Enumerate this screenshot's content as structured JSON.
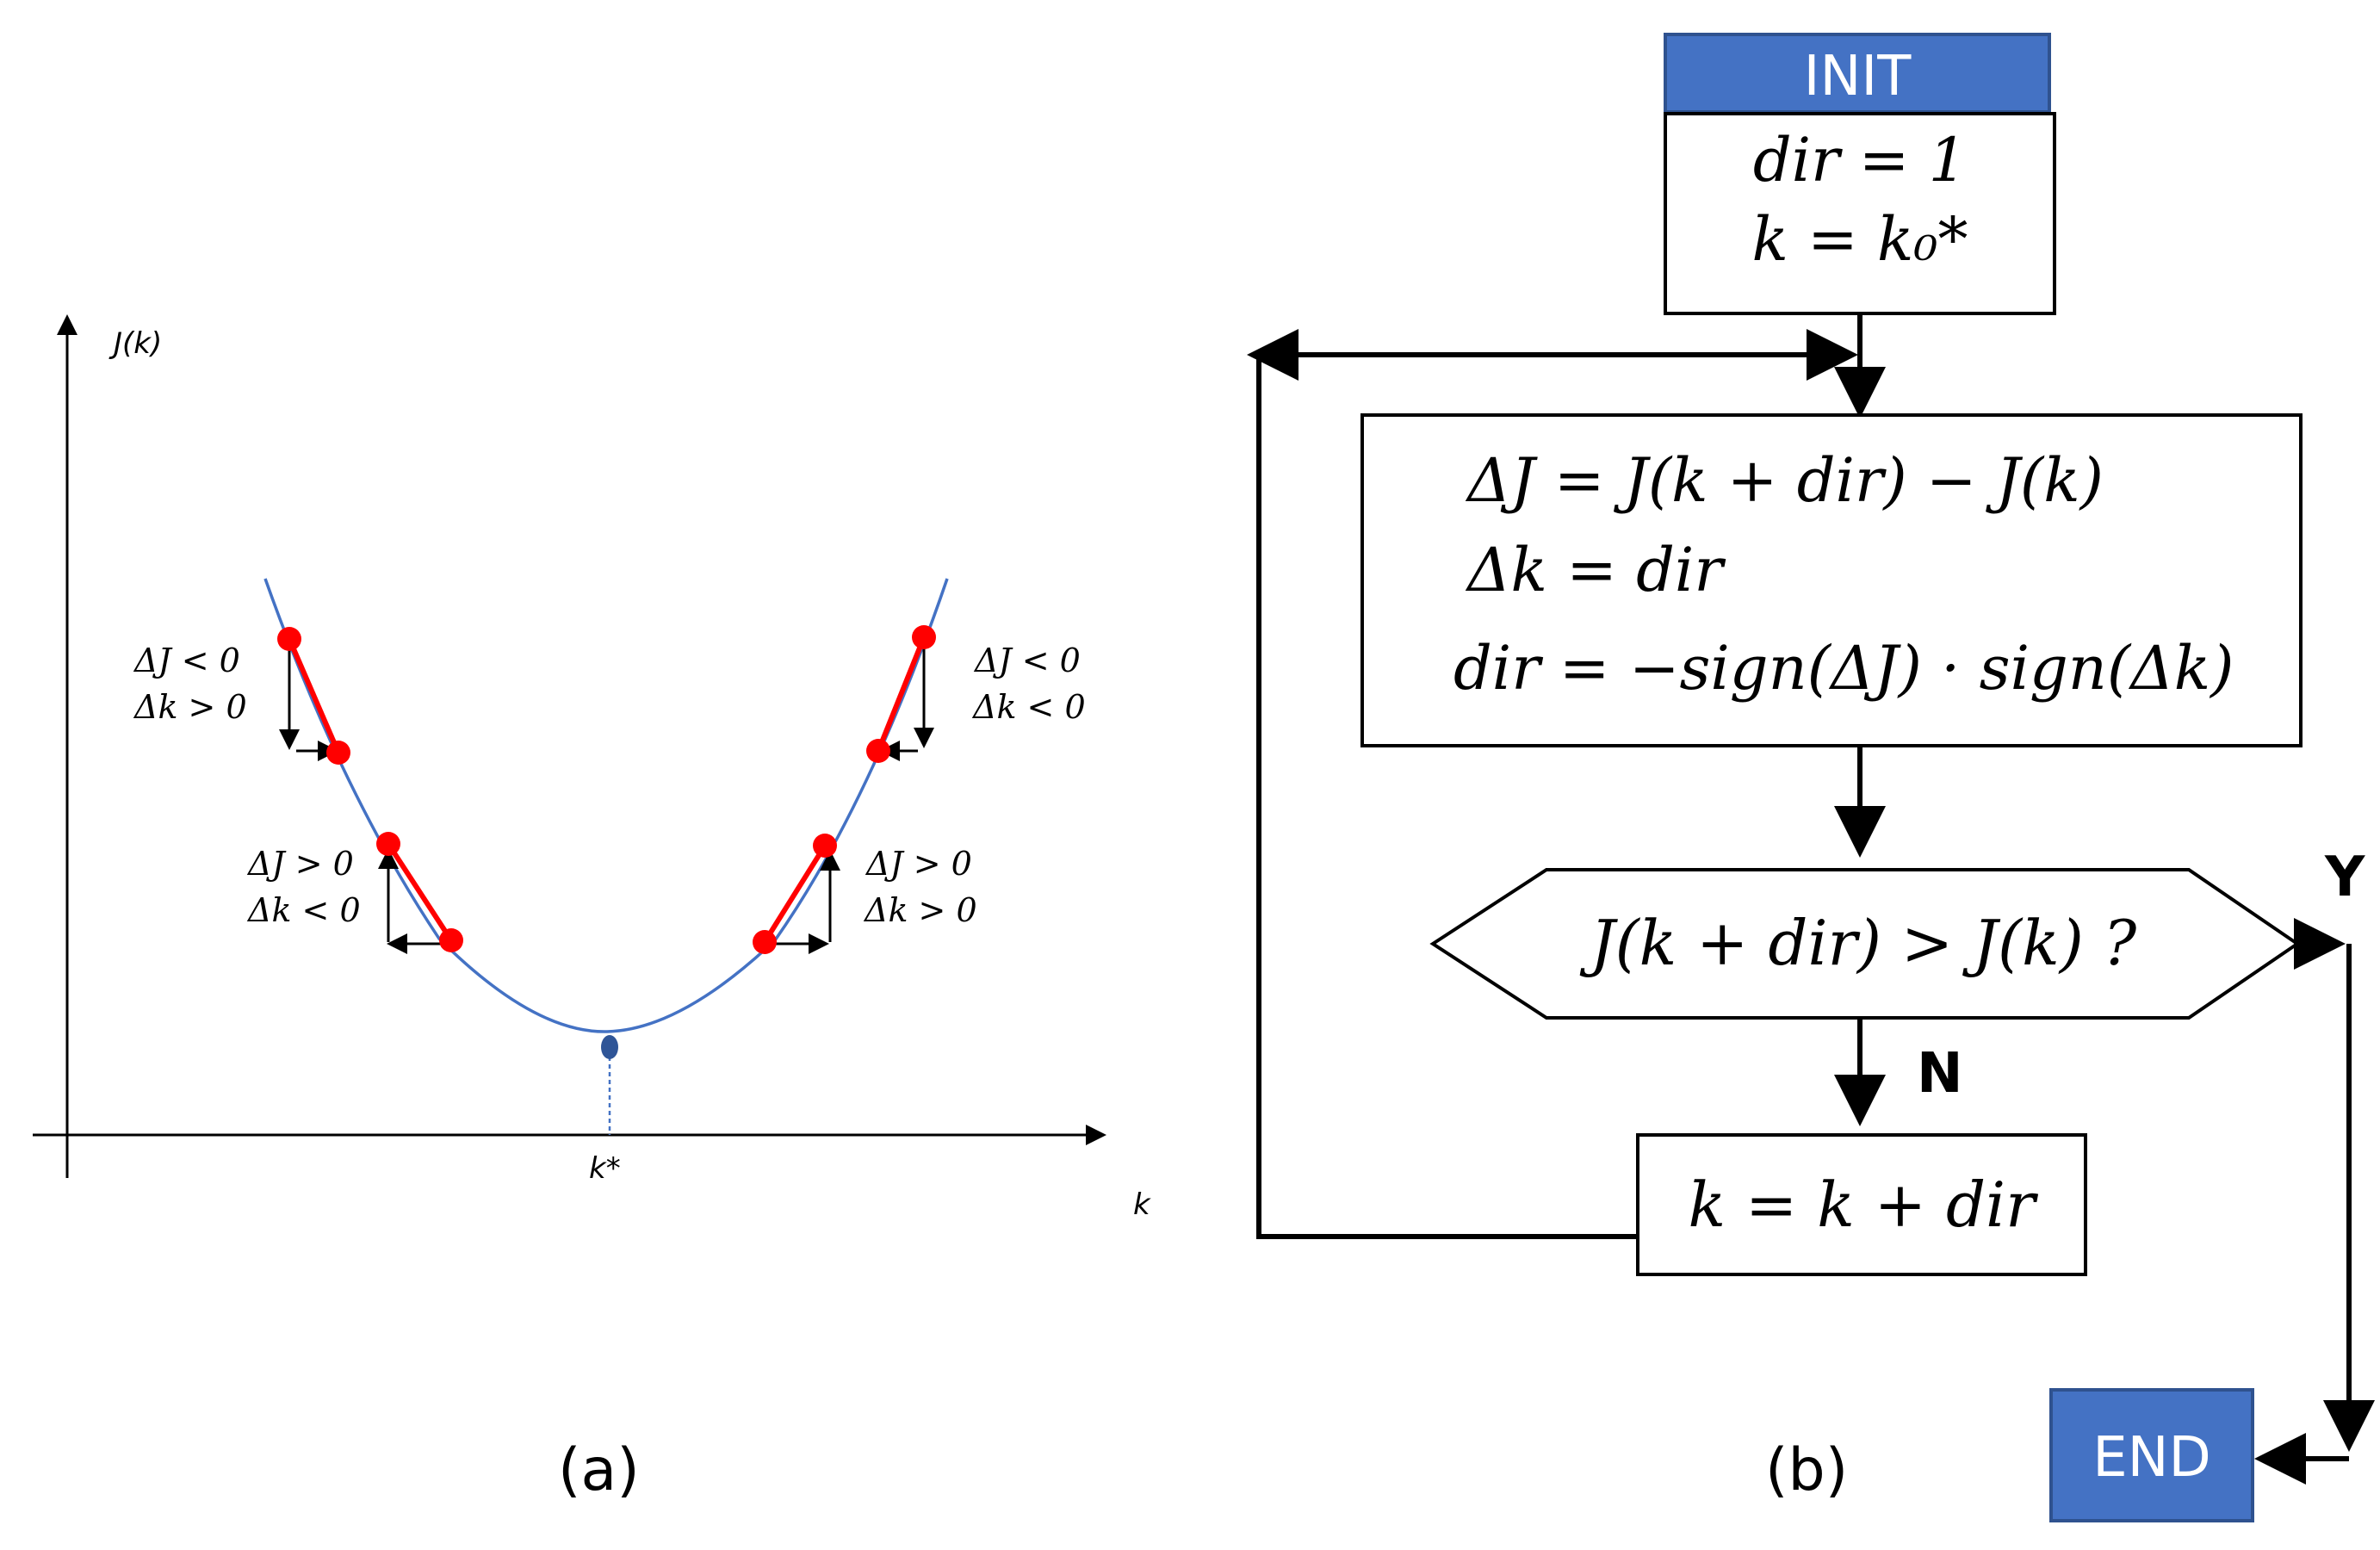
{
  "panel_a": {
    "y_axis_label": "J(k)",
    "x_axis_label": "k",
    "k_star_label": "k*",
    "caption": "(a)",
    "annotations": {
      "upper_left": [
        "ΔJ < 0",
        "Δk > 0"
      ],
      "mid_left": [
        "ΔJ > 0",
        "Δk < 0"
      ],
      "upper_right": [
        "ΔJ < 0",
        "Δk < 0"
      ],
      "mid_right": [
        "ΔJ > 0",
        "Δk > 0"
      ]
    },
    "colors": {
      "curve": "#4472C4",
      "points": "#FF0000",
      "segments": "#FF0000",
      "minimum": "#2F5597"
    }
  },
  "panel_b": {
    "caption": "(b)",
    "init_label": "INIT",
    "init_lines": [
      "dir = 1",
      "k = k₀*"
    ],
    "update_lines": [
      "ΔJ = J(k + dir) − J(k)",
      "Δk = dir",
      "dir = −sign(ΔJ) · sign(Δk)"
    ],
    "decision_text": "J(k + dir) > J(k) ?",
    "yes_label": "Y",
    "no_label": "N",
    "step_text": "k = k + dir",
    "end_label": "END",
    "colors": {
      "terminal_fill": "#4472C4",
      "terminal_border": "#2F528F"
    }
  }
}
